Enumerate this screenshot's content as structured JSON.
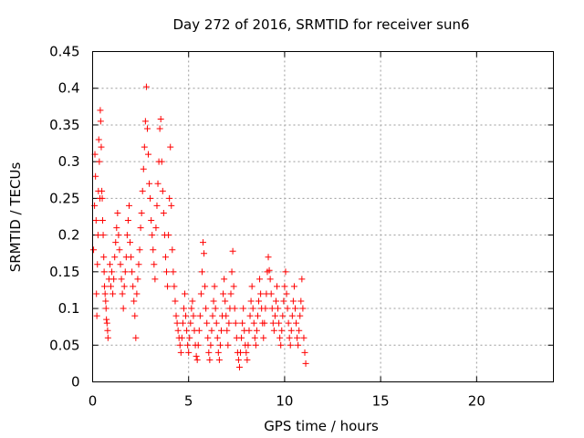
{
  "chart_data": {
    "type": "scatter",
    "title": "Day 272 of 2016, SRMTID for receiver sun6",
    "xlabel": "GPS time / hours",
    "ylabel": "SRMTID / TECUs",
    "xlim": [
      0,
      24
    ],
    "ylim": [
      0,
      0.45
    ],
    "x_ticks": [
      0,
      5,
      10,
      15,
      20
    ],
    "x_tick_labels": [
      "0",
      "5",
      "10",
      "15",
      "20"
    ],
    "y_ticks": [
      0,
      0.05,
      0.1,
      0.15,
      0.2,
      0.25,
      0.3,
      0.35,
      0.4,
      0.45
    ],
    "y_tick_labels": [
      "0",
      "0.05",
      "0.1",
      "0.15",
      "0.2",
      "0.25",
      "0.3",
      "0.35",
      "0.4",
      "0.45"
    ],
    "grid": true,
    "marker": "+",
    "color": "#ff0000",
    "series": [
      {
        "name": "SRMTID",
        "points": [
          [
            0.05,
            0.18
          ],
          [
            0.1,
            0.24
          ],
          [
            0.12,
            0.31
          ],
          [
            0.15,
            0.28
          ],
          [
            0.18,
            0.22
          ],
          [
            0.2,
            0.12
          ],
          [
            0.22,
            0.09
          ],
          [
            0.25,
            0.16
          ],
          [
            0.28,
            0.2
          ],
          [
            0.3,
            0.26
          ],
          [
            0.32,
            0.33
          ],
          [
            0.35,
            0.3
          ],
          [
            0.38,
            0.25
          ],
          [
            0.4,
            0.37
          ],
          [
            0.42,
            0.355
          ],
          [
            0.45,
            0.32
          ],
          [
            0.48,
            0.26
          ],
          [
            0.5,
            0.25
          ],
          [
            0.52,
            0.22
          ],
          [
            0.55,
            0.2
          ],
          [
            0.58,
            0.17
          ],
          [
            0.6,
            0.15
          ],
          [
            0.62,
            0.13
          ],
          [
            0.65,
            0.12
          ],
          [
            0.68,
            0.11
          ],
          [
            0.7,
            0.1
          ],
          [
            0.72,
            0.085
          ],
          [
            0.75,
            0.08
          ],
          [
            0.78,
            0.07
          ],
          [
            0.8,
            0.06
          ],
          [
            0.85,
            0.14
          ],
          [
            0.9,
            0.16
          ],
          [
            0.95,
            0.13
          ],
          [
            1.0,
            0.15
          ],
          [
            1.05,
            0.12
          ],
          [
            1.1,
            0.14
          ],
          [
            1.15,
            0.17
          ],
          [
            1.2,
            0.19
          ],
          [
            1.25,
            0.21
          ],
          [
            1.3,
            0.23
          ],
          [
            1.35,
            0.2
          ],
          [
            1.4,
            0.18
          ],
          [
            1.45,
            0.16
          ],
          [
            1.5,
            0.14
          ],
          [
            1.55,
            0.12
          ],
          [
            1.6,
            0.1
          ],
          [
            1.65,
            0.13
          ],
          [
            1.7,
            0.15
          ],
          [
            1.75,
            0.17
          ],
          [
            1.8,
            0.2
          ],
          [
            1.85,
            0.22
          ],
          [
            1.9,
            0.24
          ],
          [
            1.95,
            0.19
          ],
          [
            2.0,
            0.17
          ],
          [
            2.05,
            0.15
          ],
          [
            2.1,
            0.13
          ],
          [
            2.15,
            0.11
          ],
          [
            2.2,
            0.09
          ],
          [
            2.25,
            0.06
          ],
          [
            2.3,
            0.12
          ],
          [
            2.35,
            0.14
          ],
          [
            2.4,
            0.16
          ],
          [
            2.45,
            0.18
          ],
          [
            2.5,
            0.21
          ],
          [
            2.55,
            0.23
          ],
          [
            2.6,
            0.26
          ],
          [
            2.65,
            0.29
          ],
          [
            2.7,
            0.32
          ],
          [
            2.75,
            0.355
          ],
          [
            2.8,
            0.402
          ],
          [
            2.85,
            0.345
          ],
          [
            2.9,
            0.31
          ],
          [
            2.95,
            0.27
          ],
          [
            3.0,
            0.25
          ],
          [
            3.05,
            0.22
          ],
          [
            3.1,
            0.2
          ],
          [
            3.15,
            0.18
          ],
          [
            3.2,
            0.16
          ],
          [
            3.25,
            0.14
          ],
          [
            3.3,
            0.21
          ],
          [
            3.35,
            0.24
          ],
          [
            3.4,
            0.27
          ],
          [
            3.45,
            0.3
          ],
          [
            3.5,
            0.345
          ],
          [
            3.55,
            0.358
          ],
          [
            3.6,
            0.3
          ],
          [
            3.65,
            0.26
          ],
          [
            3.7,
            0.23
          ],
          [
            3.75,
            0.2
          ],
          [
            3.8,
            0.17
          ],
          [
            3.85,
            0.15
          ],
          [
            3.9,
            0.13
          ],
          [
            3.95,
            0.2
          ],
          [
            4.0,
            0.25
          ],
          [
            4.05,
            0.32
          ],
          [
            4.1,
            0.24
          ],
          [
            4.15,
            0.18
          ],
          [
            4.2,
            0.15
          ],
          [
            4.25,
            0.13
          ],
          [
            4.3,
            0.11
          ],
          [
            4.35,
            0.09
          ],
          [
            4.4,
            0.08
          ],
          [
            4.45,
            0.07
          ],
          [
            4.5,
            0.06
          ],
          [
            4.55,
            0.05
          ],
          [
            4.6,
            0.04
          ],
          [
            4.65,
            0.06
          ],
          [
            4.7,
            0.08
          ],
          [
            4.75,
            0.1
          ],
          [
            4.8,
            0.12
          ],
          [
            4.85,
            0.09
          ],
          [
            4.9,
            0.07
          ],
          [
            4.95,
            0.05
          ],
          [
            5.0,
            0.04
          ],
          [
            5.05,
            0.06
          ],
          [
            5.1,
            0.08
          ],
          [
            5.15,
            0.1
          ],
          [
            5.2,
            0.11
          ],
          [
            5.25,
            0.09
          ],
          [
            5.3,
            0.07
          ],
          [
            5.35,
            0.05
          ],
          [
            5.4,
            0.035
          ],
          [
            5.45,
            0.03
          ],
          [
            5.5,
            0.05
          ],
          [
            5.55,
            0.07
          ],
          [
            5.6,
            0.09
          ],
          [
            5.65,
            0.12
          ],
          [
            5.7,
            0.15
          ],
          [
            5.75,
            0.19
          ],
          [
            5.8,
            0.175
          ],
          [
            5.85,
            0.13
          ],
          [
            5.9,
            0.1
          ],
          [
            5.95,
            0.08
          ],
          [
            6.0,
            0.06
          ],
          [
            6.05,
            0.04
          ],
          [
            6.1,
            0.03
          ],
          [
            6.15,
            0.05
          ],
          [
            6.2,
            0.07
          ],
          [
            6.25,
            0.09
          ],
          [
            6.3,
            0.11
          ],
          [
            6.35,
            0.13
          ],
          [
            6.4,
            0.1
          ],
          [
            6.45,
            0.08
          ],
          [
            6.5,
            0.06
          ],
          [
            6.55,
            0.04
          ],
          [
            6.6,
            0.03
          ],
          [
            6.65,
            0.05
          ],
          [
            6.7,
            0.07
          ],
          [
            6.75,
            0.09
          ],
          [
            6.8,
            0.12
          ],
          [
            6.85,
            0.14
          ],
          [
            6.9,
            0.11
          ],
          [
            6.95,
            0.09
          ],
          [
            7.0,
            0.07
          ],
          [
            7.05,
            0.05
          ],
          [
            7.1,
            0.08
          ],
          [
            7.15,
            0.1
          ],
          [
            7.2,
            0.12
          ],
          [
            7.25,
            0.15
          ],
          [
            7.3,
            0.178
          ],
          [
            7.35,
            0.13
          ],
          [
            7.4,
            0.1
          ],
          [
            7.45,
            0.08
          ],
          [
            7.5,
            0.06
          ],
          [
            7.55,
            0.04
          ],
          [
            7.6,
            0.03
          ],
          [
            7.65,
            0.02
          ],
          [
            7.7,
            0.04
          ],
          [
            7.75,
            0.06
          ],
          [
            7.8,
            0.08
          ],
          [
            7.85,
            0.1
          ],
          [
            7.9,
            0.07
          ],
          [
            7.95,
            0.05
          ],
          [
            8.0,
            0.04
          ],
          [
            8.05,
            0.03
          ],
          [
            8.1,
            0.05
          ],
          [
            8.15,
            0.07
          ],
          [
            8.2,
            0.09
          ],
          [
            8.25,
            0.11
          ],
          [
            8.3,
            0.13
          ],
          [
            8.35,
            0.1
          ],
          [
            8.4,
            0.08
          ],
          [
            8.45,
            0.06
          ],
          [
            8.5,
            0.05
          ],
          [
            8.55,
            0.07
          ],
          [
            8.6,
            0.09
          ],
          [
            8.65,
            0.11
          ],
          [
            8.7,
            0.14
          ],
          [
            8.75,
            0.12
          ],
          [
            8.8,
            0.1
          ],
          [
            8.85,
            0.08
          ],
          [
            8.9,
            0.06
          ],
          [
            8.95,
            0.08
          ],
          [
            9.0,
            0.1
          ],
          [
            9.05,
            0.12
          ],
          [
            9.1,
            0.15
          ],
          [
            9.15,
            0.17
          ],
          [
            9.2,
            0.152
          ],
          [
            9.25,
            0.14
          ],
          [
            9.3,
            0.12
          ],
          [
            9.35,
            0.1
          ],
          [
            9.4,
            0.08
          ],
          [
            9.45,
            0.07
          ],
          [
            9.5,
            0.09
          ],
          [
            9.55,
            0.11
          ],
          [
            9.6,
            0.13
          ],
          [
            9.65,
            0.1
          ],
          [
            9.7,
            0.08
          ],
          [
            9.75,
            0.06
          ],
          [
            9.8,
            0.05
          ],
          [
            9.85,
            0.07
          ],
          [
            9.9,
            0.09
          ],
          [
            9.95,
            0.11
          ],
          [
            10.0,
            0.13
          ],
          [
            10.05,
            0.15
          ],
          [
            10.1,
            0.12
          ],
          [
            10.15,
            0.1
          ],
          [
            10.2,
            0.08
          ],
          [
            10.25,
            0.06
          ],
          [
            10.3,
            0.05
          ],
          [
            10.35,
            0.07
          ],
          [
            10.4,
            0.09
          ],
          [
            10.45,
            0.11
          ],
          [
            10.5,
            0.13
          ],
          [
            10.55,
            0.1
          ],
          [
            10.6,
            0.08
          ],
          [
            10.65,
            0.06
          ],
          [
            10.7,
            0.05
          ],
          [
            10.75,
            0.07
          ],
          [
            10.8,
            0.09
          ],
          [
            10.85,
            0.11
          ],
          [
            10.9,
            0.14
          ],
          [
            10.95,
            0.1
          ],
          [
            11.0,
            0.06
          ],
          [
            11.05,
            0.04
          ],
          [
            11.1,
            0.025
          ]
        ]
      }
    ]
  }
}
